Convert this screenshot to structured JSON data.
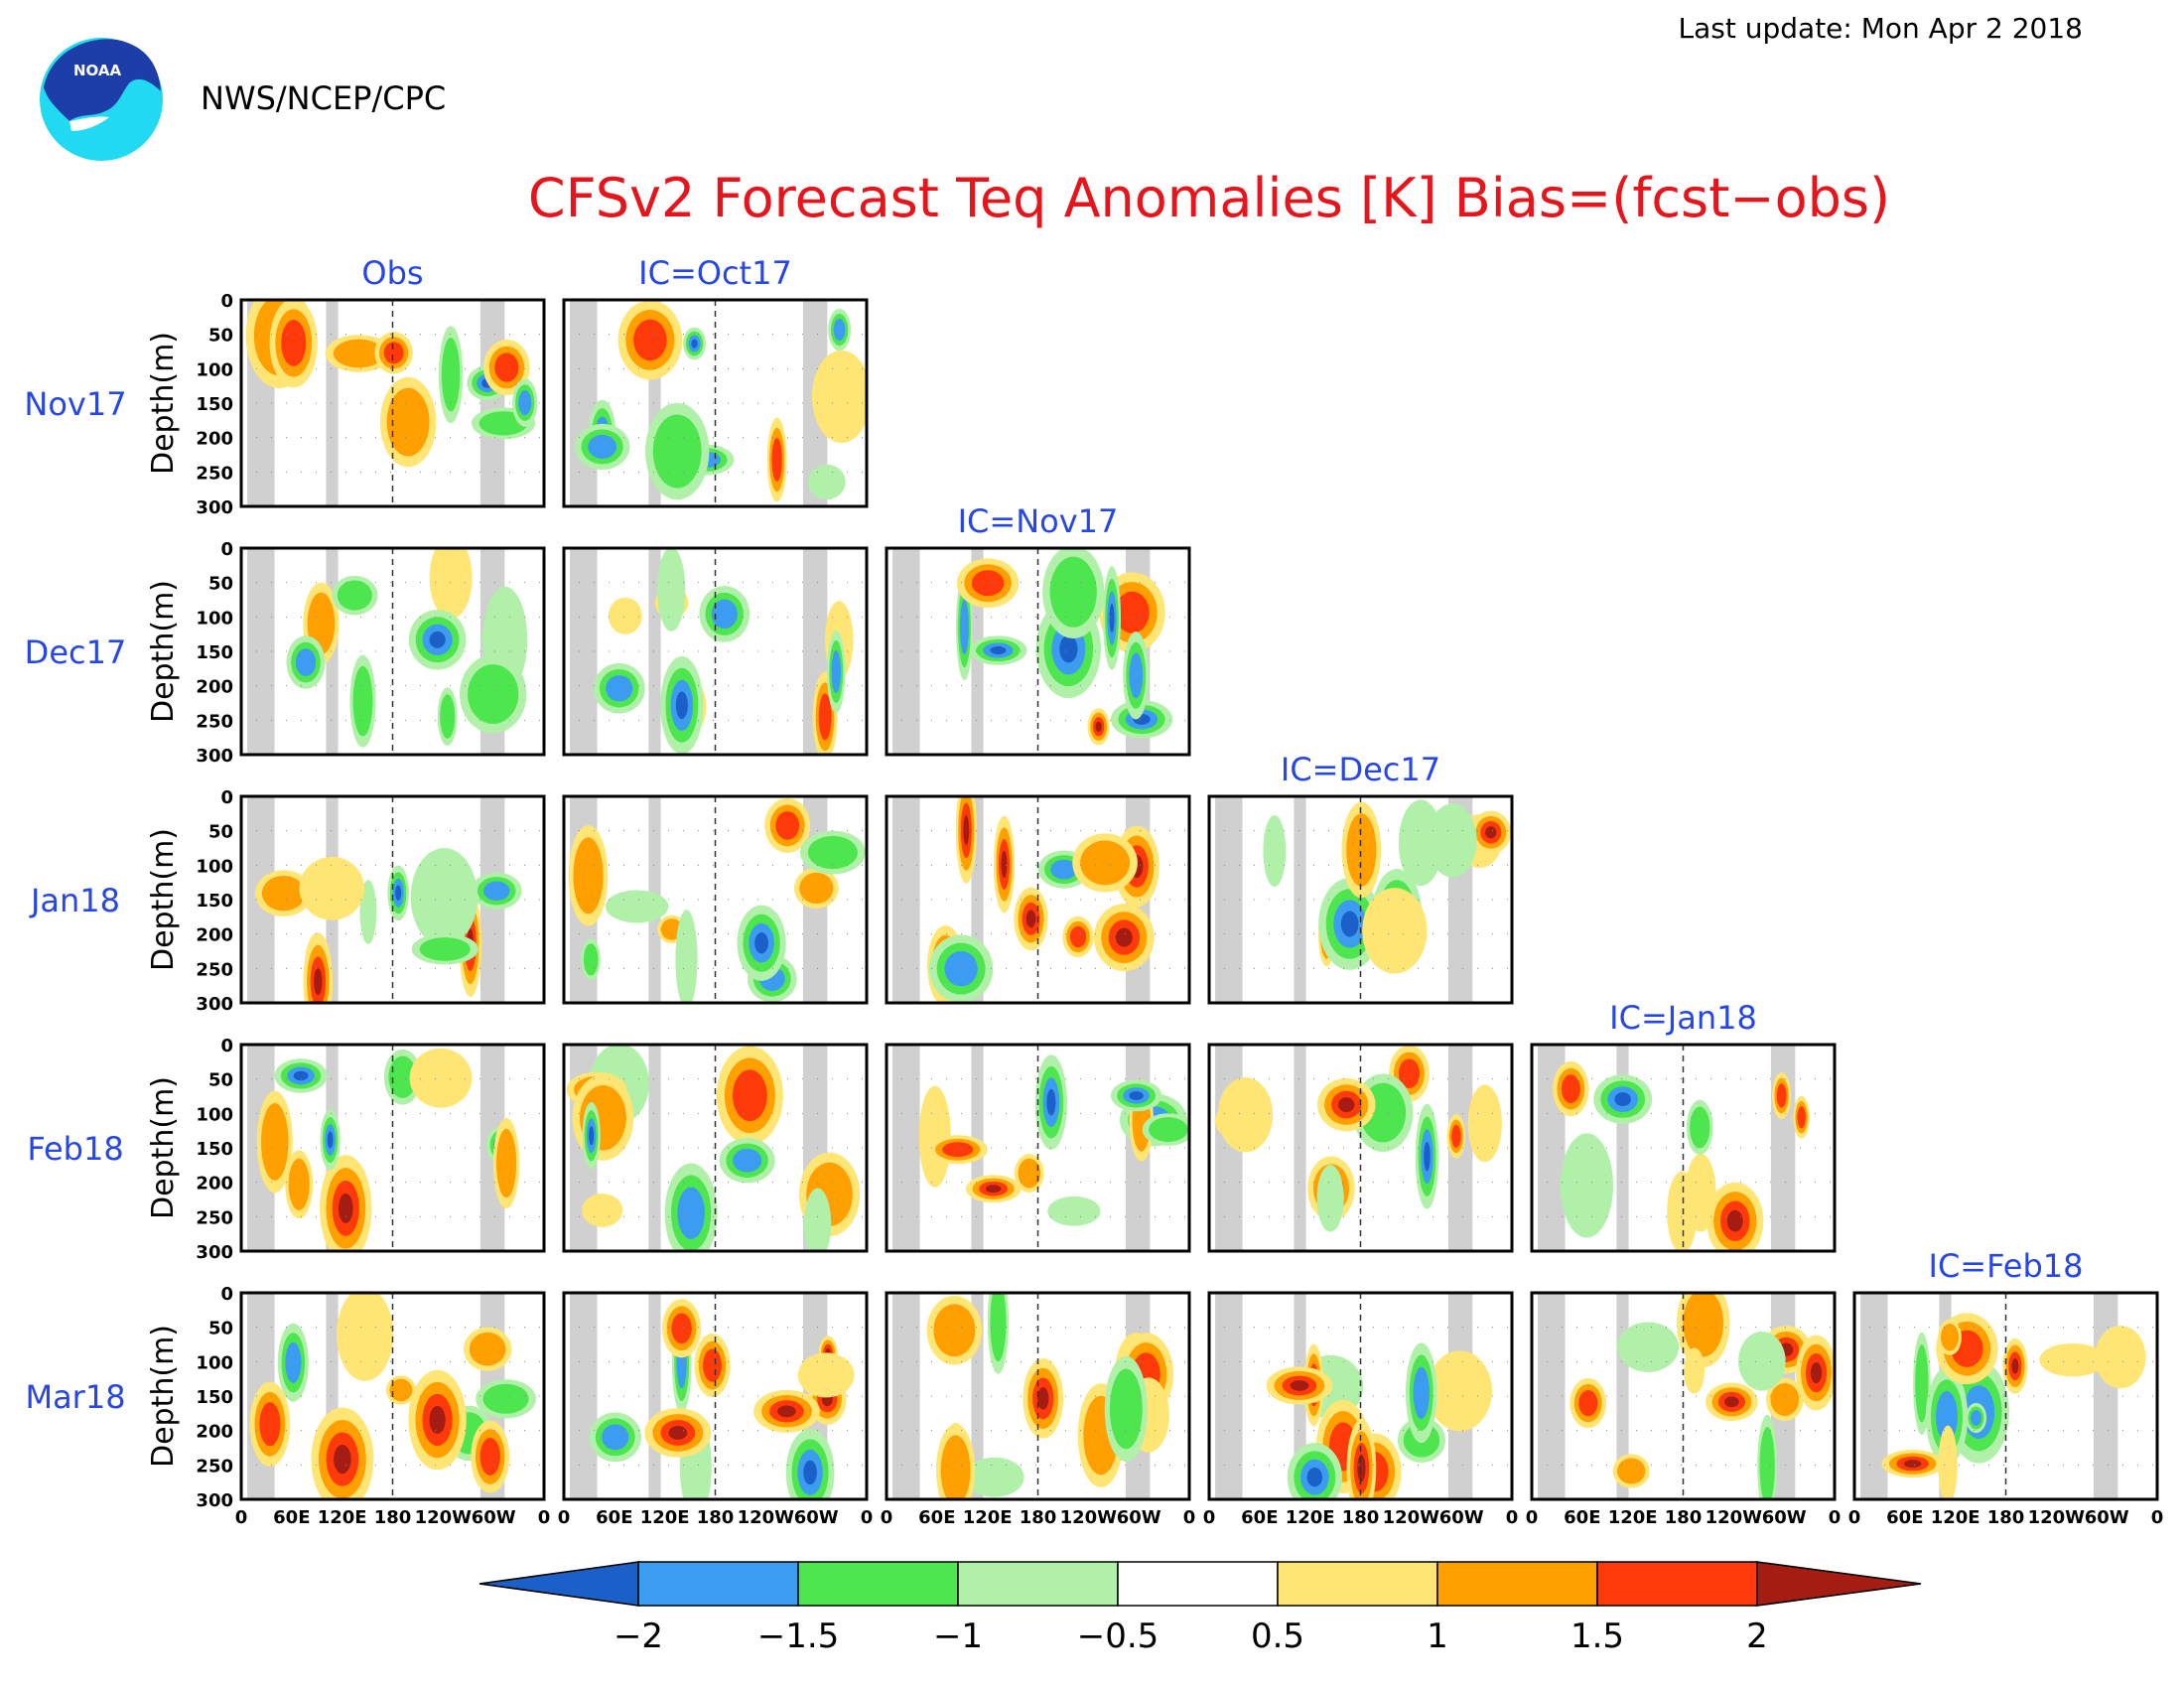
{
  "header": {
    "agency": "NWS/NCEP/CPC",
    "logo_text": "NOAA",
    "last_update": "Last update: Mon Apr 2 2018"
  },
  "colors": {
    "title": "#e8141c",
    "label": "#2646e6",
    "neg2": "#1b5fc9",
    "neg15": "#3b9cf2",
    "neg1": "#4ee64e",
    "neg05": "#b0f0a8",
    "pos05": "#ffe574",
    "pos1": "#ffa000",
    "pos15": "#ff3a0a",
    "pos2": "#a51d12",
    "land": "#d0d0d0"
  },
  "chart_data": {
    "type": "heatmap",
    "title": "CFSv2 Forecast Teq Anomalies [K] Bias=(fcst−obs)",
    "ylabel": "Depth(m)",
    "ylim": [
      0,
      300
    ],
    "yticks": [
      "0",
      "50",
      "100",
      "150",
      "200",
      "250",
      "300"
    ],
    "xticks": [
      "0",
      "60E",
      "120E",
      "180",
      "120W",
      "60W",
      "0"
    ],
    "rows": [
      {
        "label": "Nov17",
        "panels": [
          "Obs",
          "IC=Oct17"
        ]
      },
      {
        "label": "Dec17",
        "panels": [
          "Obs",
          "IC=Oct17",
          "IC=Nov17"
        ]
      },
      {
        "label": "Jan18",
        "panels": [
          "Obs",
          "IC=Oct17",
          "IC=Nov17",
          "IC=Dec17"
        ]
      },
      {
        "label": "Feb18",
        "panels": [
          "Obs",
          "IC=Oct17",
          "IC=Nov17",
          "IC=Dec17",
          "IC=Jan18"
        ]
      },
      {
        "label": "Mar18",
        "panels": [
          "Obs",
          "IC=Oct17",
          "IC=Nov17",
          "IC=Dec17",
          "IC=Jan18",
          "IC=Feb18"
        ]
      }
    ],
    "column_titles": [
      "Obs",
      "IC=Oct17",
      "IC=Nov17",
      "IC=Dec17",
      "IC=Jan18",
      "IC=Feb18"
    ],
    "colorbar": {
      "levels": [
        "−2",
        "−1.5",
        "−1",
        "−0.5",
        "0.5",
        "1",
        "1.5",
        "2"
      ]
    }
  }
}
